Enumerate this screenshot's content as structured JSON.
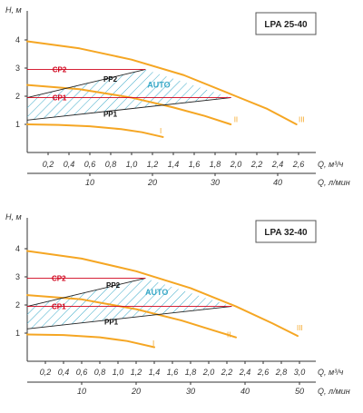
{
  "colors": {
    "curve": "#f5a623",
    "pp_line": "#222222",
    "cp_line": "#d0021b",
    "hatch": "#3aa9c8",
    "axis": "#333333",
    "box": "#555555"
  },
  "chart_data": [
    {
      "type": "line",
      "title": "LPA 25-40",
      "ylabel": "H, м",
      "xlabel_q": "Q, м³/ч",
      "xlabel_l": "Q, л/мин",
      "yticks": [
        "1",
        "2",
        "3",
        "4"
      ],
      "ylim": [
        0,
        4.6
      ],
      "xlim_q": [
        0,
        2.8
      ],
      "xticks_q": [
        "0,2",
        "0,4",
        "0,6",
        "0,8",
        "1,0",
        "1,2",
        "1,4",
        "1,6",
        "1,8",
        "2,0",
        "2,2",
        "2,4",
        "2,6"
      ],
      "xticks_q_values": [
        0.2,
        0.4,
        0.6,
        0.8,
        1.0,
        1.2,
        1.4,
        1.6,
        1.8,
        2.0,
        2.2,
        2.4,
        2.6
      ],
      "xticks_l": [
        "10",
        "20",
        "30",
        "40"
      ],
      "xticks_l_values": [
        10,
        20,
        30,
        40
      ],
      "series": [
        {
          "name": "I",
          "kind": "speed",
          "x": [
            0,
            0.3,
            0.6,
            0.9,
            1.1,
            1.3
          ],
          "y": [
            1.0,
            0.98,
            0.93,
            0.83,
            0.72,
            0.55
          ],
          "label_at": [
            1.27,
            0.78
          ]
        },
        {
          "name": "II",
          "kind": "speed",
          "x": [
            0,
            0.5,
            1.0,
            1.4,
            1.7,
            1.95
          ],
          "y": [
            2.4,
            2.25,
            1.95,
            1.6,
            1.3,
            1.0
          ],
          "label_at": [
            1.98,
            1.18
          ]
        },
        {
          "name": "III",
          "kind": "speed",
          "x": [
            0,
            0.5,
            1.0,
            1.5,
            2.0,
            2.3,
            2.58
          ],
          "y": [
            3.95,
            3.7,
            3.3,
            2.75,
            2.0,
            1.55,
            1.0
          ],
          "label_at": [
            2.6,
            1.18
          ]
        },
        {
          "name": "PP2",
          "kind": "pp",
          "x": [
            0,
            1.13
          ],
          "y": [
            1.95,
            2.95
          ],
          "label_at": [
            0.73,
            2.52
          ]
        },
        {
          "name": "PP1",
          "kind": "pp",
          "x": [
            0,
            1.95
          ],
          "y": [
            1.15,
            1.95
          ],
          "label_at": [
            0.73,
            1.28
          ]
        },
        {
          "name": "CP2",
          "kind": "cp",
          "x": [
            0,
            1.13
          ],
          "y": [
            2.95,
            2.95
          ],
          "label_at": [
            0.05,
            2.95
          ]
        },
        {
          "name": "CP1",
          "kind": "cp",
          "x": [
            0,
            1.95
          ],
          "y": [
            1.95,
            1.95
          ],
          "label_at": [
            0.05,
            1.95
          ]
        }
      ],
      "auto_region": {
        "name": "AUTO",
        "x": [
          0,
          1.13,
          1.95,
          0
        ],
        "y": [
          1.95,
          2.95,
          1.95,
          1.15
        ],
        "label_at": [
          1.15,
          2.3
        ]
      }
    },
    {
      "type": "line",
      "title": "LPA 32-40",
      "ylabel": "H, м",
      "xlabel_q": "Q, м³/ч",
      "xlabel_l": "Q, л/мин",
      "yticks": [
        "1",
        "2",
        "3",
        "4"
      ],
      "ylim": [
        0,
        4.6
      ],
      "xlim_q": [
        0,
        3.2
      ],
      "xticks_q": [
        "0,2",
        "0,4",
        "0,6",
        "0,8",
        "1,0",
        "1,2",
        "1,4",
        "1,6",
        "1,8",
        "2,0",
        "2,2",
        "2,4",
        "2,6",
        "2,8",
        "3,0"
      ],
      "xticks_q_values": [
        0.2,
        0.4,
        0.6,
        0.8,
        1.0,
        1.2,
        1.4,
        1.6,
        1.8,
        2.0,
        2.2,
        2.4,
        2.6,
        2.8,
        3.0
      ],
      "xticks_l": [
        "10",
        "20",
        "30",
        "40",
        "50"
      ],
      "xticks_l_values": [
        10,
        20,
        30,
        40,
        50
      ],
      "series": [
        {
          "name": "I",
          "kind": "speed",
          "x": [
            0,
            0.4,
            0.8,
            1.1,
            1.4
          ],
          "y": [
            0.95,
            0.93,
            0.85,
            0.72,
            0.5
          ],
          "label_at": [
            1.38,
            0.65
          ]
        },
        {
          "name": "II",
          "kind": "speed",
          "x": [
            0,
            0.6,
            1.2,
            1.7,
            2.05,
            2.3
          ],
          "y": [
            2.35,
            2.2,
            1.85,
            1.45,
            1.1,
            0.85
          ],
          "label_at": [
            2.2,
            0.95
          ]
        },
        {
          "name": "III",
          "kind": "speed",
          "x": [
            0,
            0.6,
            1.2,
            1.8,
            2.3,
            2.7,
            2.98
          ],
          "y": [
            3.92,
            3.65,
            3.2,
            2.6,
            1.95,
            1.35,
            0.9
          ],
          "label_at": [
            2.97,
            1.2
          ]
        },
        {
          "name": "PP2",
          "kind": "pp",
          "x": [
            0,
            1.3
          ],
          "y": [
            1.95,
            2.95
          ],
          "label_at": [
            0.87,
            2.62
          ]
        },
        {
          "name": "PP1",
          "kind": "pp",
          "x": [
            0,
            2.25
          ],
          "y": [
            1.15,
            1.95
          ],
          "label_at": [
            0.85,
            1.3
          ]
        },
        {
          "name": "CP2",
          "kind": "cp",
          "x": [
            0,
            1.3
          ],
          "y": [
            2.95,
            2.95
          ],
          "label_at": [
            0.05,
            2.95
          ]
        },
        {
          "name": "CP1",
          "kind": "cp",
          "x": [
            0,
            2.25
          ],
          "y": [
            1.95,
            1.95
          ],
          "label_at": [
            0.05,
            1.95
          ]
        }
      ],
      "auto_region": {
        "name": "AUTO",
        "x": [
          0,
          1.3,
          2.25,
          0
        ],
        "y": [
          1.95,
          2.95,
          1.95,
          1.15
        ],
        "label_at": [
          1.3,
          2.35
        ]
      }
    }
  ]
}
